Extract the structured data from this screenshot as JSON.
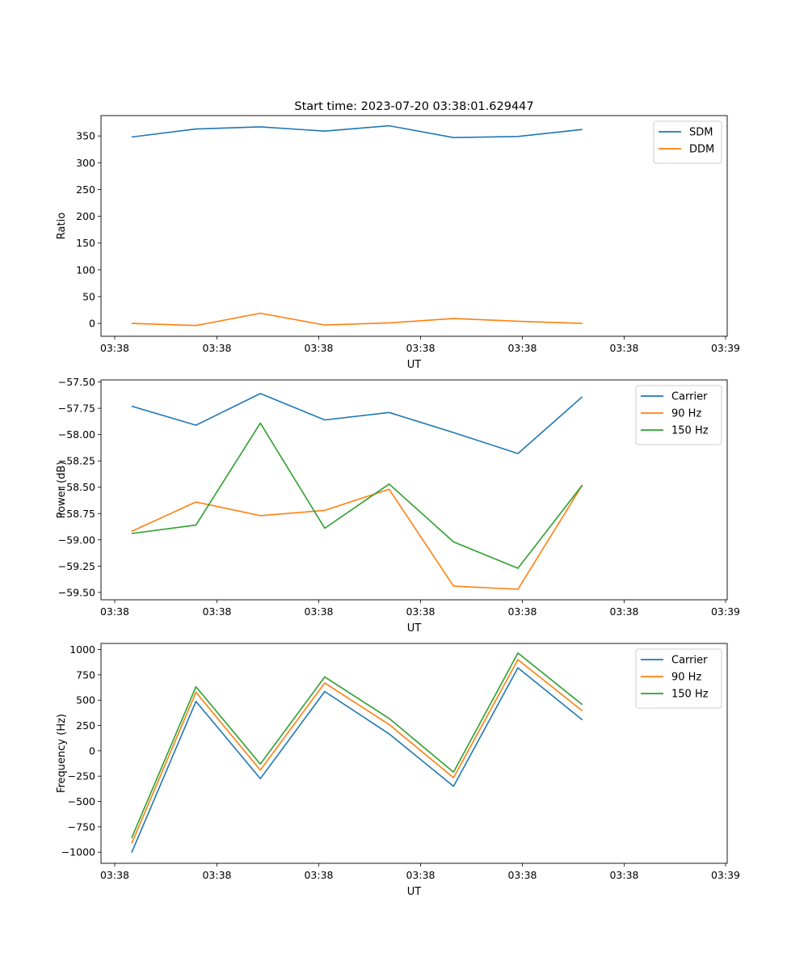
{
  "figure": {
    "title": "Start time: 2023-07-20 03:38:01.629447"
  },
  "chart_data": [
    {
      "type": "line",
      "title": "Start time: 2023-07-20 03:38:01.629447",
      "xlabel": "UT",
      "ylabel": "Ratio",
      "x_ticks": [
        "03:38",
        "03:38",
        "03:38",
        "03:38",
        "03:38",
        "03:38",
        "03:38"
      ],
      "x_ticks_last": "03:39",
      "yticks": [
        0,
        50,
        100,
        150,
        200,
        250,
        300,
        350
      ],
      "ylim": [
        -24,
        388
      ],
      "x_index_range": [
        -0.475,
        9.25
      ],
      "x": [
        0,
        1,
        2,
        3,
        4,
        5,
        6,
        7
      ],
      "series": [
        {
          "name": "SDM",
          "color": "#1f77b4",
          "values": [
            348,
            363,
            367,
            359,
            369,
            347,
            349,
            362
          ]
        },
        {
          "name": "DDM",
          "color": "#ff7f0e",
          "values": [
            0,
            -4,
            19,
            -3,
            1,
            9,
            4,
            0
          ]
        }
      ],
      "legend": "top-right"
    },
    {
      "type": "line",
      "title": "",
      "xlabel": "UT",
      "ylabel": "Power (dB)",
      "x_ticks": [
        "03:38",
        "03:38",
        "03:38",
        "03:38",
        "03:38",
        "03:38",
        "03:38"
      ],
      "x_ticks_last": "03:39",
      "yticks": [
        -59.5,
        -59.25,
        -59.0,
        -58.75,
        -58.5,
        -58.25,
        -58.0,
        -57.75,
        -57.5
      ],
      "yticklabels": [
        "−59.50",
        "−59.25",
        "−59.00",
        "−58.75",
        "−58.50",
        "−58.25",
        "−58.00",
        "−57.75",
        "−57.50"
      ],
      "ylim": [
        -59.57,
        -57.48
      ],
      "x_index_range": [
        -0.475,
        9.25
      ],
      "x": [
        0,
        1,
        2,
        3,
        4,
        5,
        6,
        7
      ],
      "series": [
        {
          "name": "Carrier",
          "color": "#1f77b4",
          "values": [
            -57.73,
            -57.91,
            -57.61,
            -57.86,
            -57.79,
            -57.98,
            -58.18,
            -57.64
          ]
        },
        {
          "name": "90 Hz",
          "color": "#ff7f0e",
          "values": [
            -58.92,
            -58.64,
            -58.77,
            -58.72,
            -58.52,
            -59.44,
            -59.47,
            -58.48
          ]
        },
        {
          "name": "150 Hz",
          "color": "#2ca02c",
          "values": [
            -58.94,
            -58.86,
            -57.89,
            -58.89,
            -58.47,
            -59.02,
            -59.27,
            -58.48
          ]
        }
      ],
      "legend": "top-right"
    },
    {
      "type": "line",
      "title": "",
      "xlabel": "UT",
      "ylabel": "Frequency (Hz)",
      "x_ticks": [
        "03:38",
        "03:38",
        "03:38",
        "03:38",
        "03:38",
        "03:38",
        "03:38"
      ],
      "x_ticks_last": "03:39",
      "yticks": [
        -1000,
        -750,
        -500,
        -250,
        0,
        250,
        500,
        750,
        1000
      ],
      "yticklabels": [
        "−1000",
        "−750",
        "−500",
        "−250",
        "0",
        "250",
        "500",
        "750",
        "1000"
      ],
      "ylim": [
        -1110,
        1060
      ],
      "x_index_range": [
        -0.475,
        9.25
      ],
      "x": [
        0,
        1,
        2,
        3,
        4,
        5,
        6,
        7
      ],
      "series": [
        {
          "name": "Carrier",
          "color": "#1f77b4",
          "values": [
            -1005,
            488,
            -275,
            585,
            167,
            -350,
            820,
            305
          ]
        },
        {
          "name": "90 Hz",
          "color": "#ff7f0e",
          "values": [
            -915,
            578,
            -190,
            670,
            260,
            -265,
            900,
            395
          ]
        },
        {
          "name": "150 Hz",
          "color": "#2ca02c",
          "values": [
            -860,
            632,
            -130,
            730,
            320,
            -210,
            965,
            455
          ]
        }
      ],
      "legend": "top-right"
    }
  ]
}
